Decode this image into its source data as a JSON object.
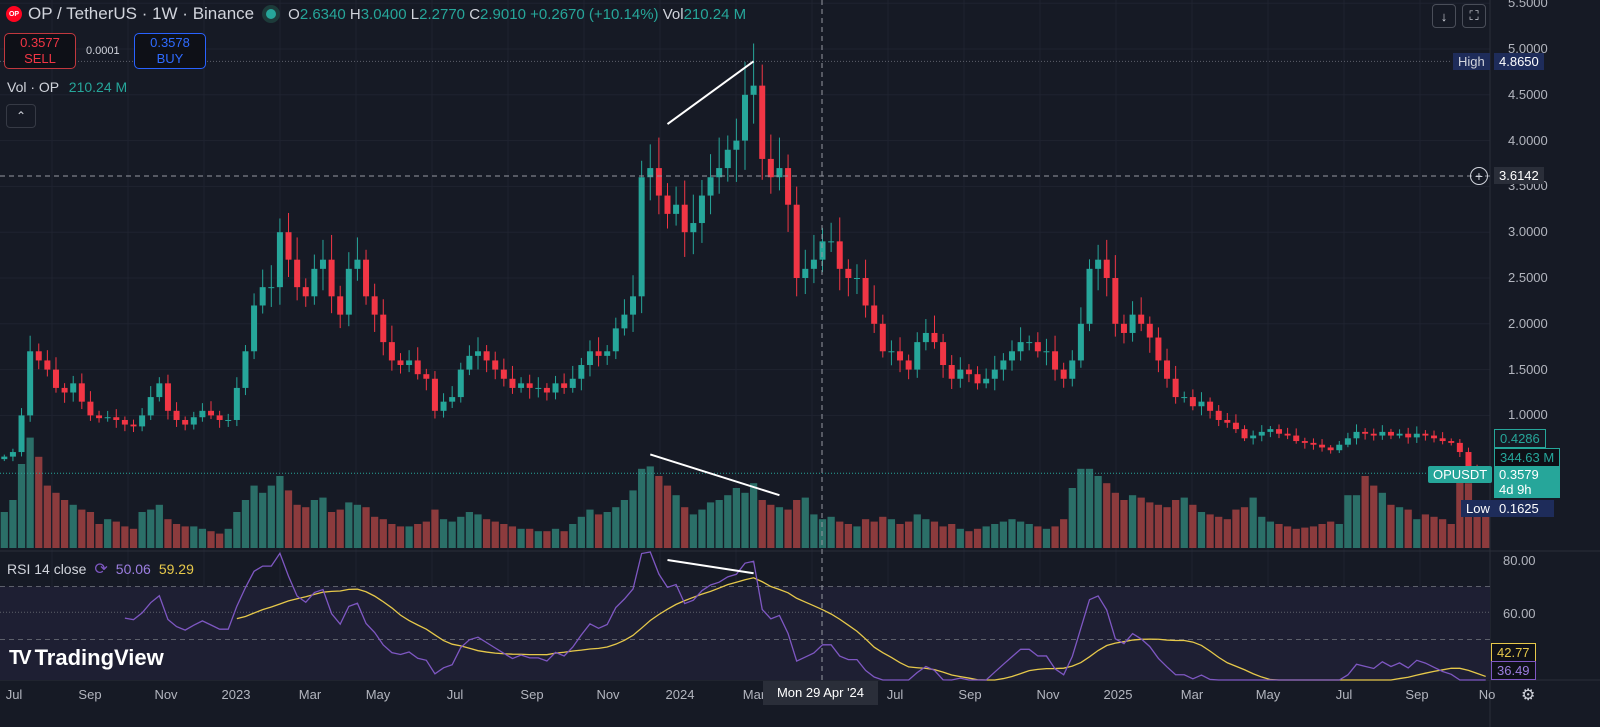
{
  "header": {
    "symbol": "OP / TetherUS · 1W · Binance",
    "logo_text": "OP",
    "ohlc": {
      "o_label": "O",
      "o": "2.6340",
      "h_label": "H",
      "h": "3.0400",
      "l_label": "L",
      "l": "2.2770",
      "c_label": "C",
      "c": "2.9010",
      "change": "+0.2670 (+10.14%)",
      "vol_label": "Vol",
      "vol": "210.24 M"
    }
  },
  "trade": {
    "sell_price": "0.3577",
    "sell_label": "SELL",
    "spread": "0.0001",
    "buy_price": "0.3578",
    "buy_label": "BUY"
  },
  "volume_legend": {
    "label": "Vol · OP",
    "value": "210.24 M"
  },
  "collapse_icon": "chevron-up-icon",
  "toolbar": {
    "download_icon": "arrow-down-icon",
    "fullscreen_icon": "fullscreen-icon"
  },
  "price_axis": [
    "5.5000",
    "5.0000",
    "4.5000",
    "4.0000",
    "3.5000",
    "3.0000",
    "2.5000",
    "2.0000",
    "1.5000",
    "1.0000"
  ],
  "tags": {
    "high_label": "High",
    "high": "4.8650",
    "crosshair_price": "3.6142",
    "last_high": "0.4286",
    "volume": "344.63 M",
    "symbol": "OPUSDT",
    "last": "0.3579",
    "countdown": "4d 9h",
    "low_label": "Low",
    "low": "0.1625",
    "rsi_ma": "42.77",
    "rsi": "36.49"
  },
  "rsi_axis": [
    "80.00",
    "60.00"
  ],
  "rsi_legend": {
    "label": "RSI 14 close",
    "rsi": "50.06",
    "ma": "59.29"
  },
  "brand": "TradingView",
  "time_axis": [
    "Jul",
    "Sep",
    "Nov",
    "2023",
    "Mar",
    "May",
    "Jul",
    "Sep",
    "Nov",
    "2024",
    "Mar",
    "Jul",
    "Sep",
    "Nov",
    "2025",
    "Mar",
    "May",
    "Jul",
    "Sep",
    "No"
  ],
  "crosshair_date": "Mon 29 Apr '24",
  "colors": {
    "up": "#26a69a",
    "down": "#f23645",
    "vol_up": "#2b6f68",
    "vol_down": "#8c3b3d",
    "rsi": "#7e57c2",
    "rsi_ma": "#e6c84a",
    "bg": "#161a25"
  },
  "chart_data": {
    "type": "candlestick",
    "interval": "1W",
    "price_range": [
      0,
      5.5
    ],
    "closes": [
      0.55,
      0.6,
      1.0,
      1.7,
      1.6,
      1.5,
      1.3,
      1.25,
      1.35,
      1.15,
      1.0,
      0.97,
      0.98,
      0.95,
      0.9,
      0.88,
      1.0,
      1.2,
      1.35,
      1.05,
      0.95,
      0.9,
      0.98,
      1.05,
      1.0,
      0.95,
      0.95,
      1.3,
      1.7,
      2.2,
      2.4,
      2.4,
      3.0,
      2.7,
      2.4,
      2.3,
      2.6,
      2.7,
      2.3,
      2.1,
      2.6,
      2.7,
      2.3,
      2.1,
      1.8,
      1.6,
      1.55,
      1.6,
      1.45,
      1.4,
      1.05,
      1.15,
      1.2,
      1.5,
      1.65,
      1.7,
      1.6,
      1.5,
      1.4,
      1.3,
      1.35,
      1.3,
      1.3,
      1.25,
      1.35,
      1.3,
      1.4,
      1.55,
      1.7,
      1.65,
      1.7,
      1.95,
      2.1,
      2.3,
      3.6,
      3.7,
      3.4,
      3.2,
      3.3,
      3.0,
      3.1,
      3.4,
      3.6,
      3.7,
      3.9,
      4.0,
      4.5,
      4.6,
      3.8,
      3.6,
      3.7,
      3.3,
      2.5,
      2.6,
      2.7,
      2.9,
      2.9,
      2.6,
      2.5,
      2.5,
      2.2,
      2.0,
      1.7,
      1.7,
      1.6,
      1.5,
      1.8,
      1.9,
      1.8,
      1.55,
      1.4,
      1.5,
      1.45,
      1.35,
      1.4,
      1.5,
      1.6,
      1.7,
      1.8,
      1.8,
      1.7,
      1.7,
      1.5,
      1.4,
      1.6,
      2.0,
      2.6,
      2.7,
      2.5,
      2.0,
      1.9,
      2.1,
      2.0,
      1.85,
      1.6,
      1.4,
      1.2,
      1.2,
      1.1,
      1.15,
      1.05,
      0.95,
      0.92,
      0.85,
      0.75,
      0.78,
      0.82,
      0.85,
      0.8,
      0.78,
      0.72,
      0.7,
      0.68,
      0.65,
      0.62,
      0.68,
      0.75,
      0.82,
      0.8,
      0.78,
      0.82,
      0.78,
      0.8,
      0.76,
      0.8,
      0.78,
      0.75,
      0.72,
      0.7,
      0.6,
      0.42,
      0.4,
      0.358
    ],
    "volumes_m": [
      150,
      200,
      350,
      460,
      380,
      260,
      230,
      200,
      180,
      160,
      150,
      100,
      120,
      110,
      90,
      80,
      150,
      160,
      180,
      120,
      100,
      90,
      90,
      80,
      70,
      60,
      80,
      150,
      200,
      260,
      230,
      260,
      300,
      240,
      180,
      170,
      200,
      210,
      150,
      160,
      190,
      180,
      170,
      130,
      120,
      100,
      90,
      90,
      100,
      110,
      160,
      120,
      110,
      130,
      150,
      140,
      120,
      110,
      100,
      90,
      80,
      80,
      70,
      70,
      80,
      70,
      100,
      130,
      160,
      140,
      150,
      170,
      200,
      240,
      330,
      340,
      300,
      260,
      220,
      170,
      140,
      160,
      190,
      200,
      220,
      250,
      230,
      270,
      200,
      180,
      170,
      160,
      200,
      210,
      140,
      120,
      130,
      110,
      100,
      90,
      120,
      110,
      130,
      120,
      100,
      110,
      140,
      120,
      110,
      90,
      100,
      80,
      70,
      80,
      90,
      100,
      110,
      120,
      110,
      100,
      90,
      80,
      90,
      120,
      250,
      330,
      330,
      300,
      270,
      230,
      200,
      220,
      210,
      190,
      180,
      170,
      200,
      210,
      180,
      150,
      140,
      130,
      120,
      160,
      170,
      210,
      130,
      110,
      100,
      90,
      80,
      85,
      90,
      100,
      110,
      100,
      220,
      220,
      300,
      260,
      230,
      180,
      170,
      160,
      120,
      140,
      130,
      120,
      100,
      330,
      270,
      200,
      190
    ],
    "rsi_range": [
      30,
      85
    ],
    "rsi_levels": [
      70,
      50
    ],
    "trendlines": [
      {
        "pane": "price",
        "from": {
          "week": 77,
          "value": 4.18
        },
        "to": {
          "week": 87,
          "value": 4.865
        }
      },
      {
        "pane": "volume",
        "from": {
          "week": 75,
          "value": 390
        },
        "to": {
          "week": 90,
          "value": 220
        }
      },
      {
        "pane": "rsi",
        "from": {
          "week": 77,
          "value": 80
        },
        "to": {
          "week": 87,
          "value": 75
        }
      }
    ]
  }
}
